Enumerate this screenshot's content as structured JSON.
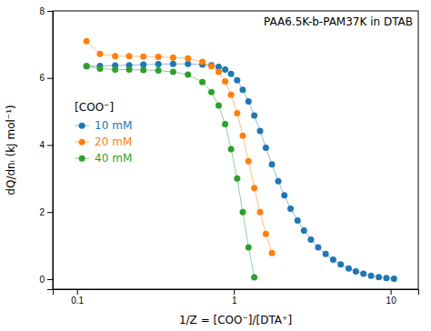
{
  "chart_data": {
    "type": "line",
    "title": "PAA6.5K-b-PAM37K in DTAB",
    "xlabel": "1/Z = [COO⁻]/[DTA⁺]",
    "ylabel": "dQ/dnₗ (kJ mol⁻¹)",
    "log": "x",
    "xlim": [
      0.07,
      15
    ],
    "xticks": [
      0.1,
      1,
      10
    ],
    "ylim": [
      -0.3,
      8
    ],
    "yticks": [
      0,
      2,
      4,
      6,
      8
    ],
    "grid": false,
    "legend": "left",
    "legend_title": "[COO⁻]",
    "marker": "circle",
    "line_style": "solid",
    "series": [
      {
        "name": "10 mM",
        "x": [
          0.115,
          0.14,
          0.175,
          0.215,
          0.265,
          0.33,
          0.41,
          0.51,
          0.63,
          0.72,
          0.8,
          0.88,
          0.96,
          1.05,
          1.14,
          1.24,
          1.35,
          1.47,
          1.6,
          1.75,
          1.92,
          2.1,
          2.3,
          2.55,
          2.8,
          3.1,
          3.45,
          3.85,
          4.3,
          4.8,
          5.4,
          6.0,
          6.7,
          7.5,
          8.4,
          9.4,
          10.5
        ],
        "values": [
          6.35,
          6.36,
          6.37,
          6.38,
          6.4,
          6.41,
          6.42,
          6.42,
          6.4,
          6.38,
          6.33,
          6.25,
          6.12,
          5.93,
          5.65,
          5.3,
          4.88,
          4.42,
          3.92,
          3.42,
          2.92,
          2.5,
          2.1,
          1.75,
          1.45,
          1.18,
          0.95,
          0.75,
          0.58,
          0.44,
          0.32,
          0.23,
          0.16,
          0.1,
          0.06,
          0.03,
          0.01
        ]
      },
      {
        "name": "20 mM",
        "x": [
          0.115,
          0.14,
          0.175,
          0.215,
          0.265,
          0.33,
          0.41,
          0.51,
          0.63,
          0.72,
          0.8,
          0.88,
          0.96,
          1.05,
          1.14,
          1.24,
          1.35,
          1.47,
          1.6,
          1.75
        ],
        "values": [
          7.1,
          6.72,
          6.65,
          6.65,
          6.64,
          6.63,
          6.61,
          6.58,
          6.48,
          6.35,
          6.18,
          5.9,
          5.5,
          4.95,
          4.28,
          3.52,
          2.72,
          2.0,
          1.35,
          0.78
        ]
      },
      {
        "name": "40 mM",
        "x": [
          0.115,
          0.14,
          0.175,
          0.215,
          0.265,
          0.33,
          0.41,
          0.51,
          0.63,
          0.72,
          0.8,
          0.88,
          0.96,
          1.05,
          1.14,
          1.24,
          1.35
        ],
        "values": [
          6.35,
          6.28,
          6.25,
          6.25,
          6.24,
          6.22,
          6.18,
          6.1,
          5.88,
          5.58,
          5.18,
          4.62,
          3.88,
          3.0,
          2.0,
          0.95,
          0.05
        ]
      }
    ]
  }
}
